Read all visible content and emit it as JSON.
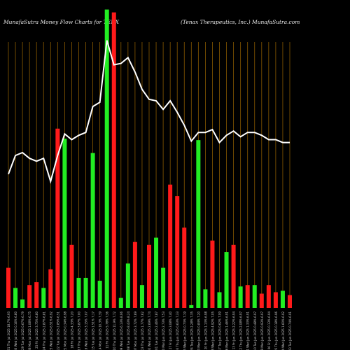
{
  "header": {
    "title_left": "MunafaSutra  Money  Flow  Charts for  TENX",
    "title_right": "(Tenax Therapeutics,  Inc.) MunafaSutra.com"
  },
  "colors": {
    "background": "#000000",
    "gridline": "#8a5a00",
    "up_bar": "#22ee22",
    "down_bar": "#ff1a1a",
    "price_line": "#ffffff",
    "tick_label": "#cccccc"
  },
  "chart_data": {
    "type": "bar",
    "grid": "vertical",
    "categories": [
      "31 Thu Jul 2025 18.7% 6.93",
      "30 Wed Jul 2025 0.16% 6.80",
      "29 Tue Jul 2025 0.67% 6.79",
      "28 Mon Jul 2025 1.08% 6.75",
      "25 Fri Jul 2025 3.75% 6.80",
      "24 Thu Jul 2025 2.87% 6.81",
      "23 Wed Jul 2025 6.51% 6.92",
      "22 Tue Jul 2025 2.85% 6.51",
      "21 Mon Jul 2025 0.34% 6.98",
      "18 Fri Jul 2025 4.33% 7.20",
      "17 Thu Jul 2025 3.87% 7.00",
      "16 Wed Jul 2025 3.15% 7.07",
      "15 Tue Jul 2025 1.51% 7.17",
      "14 Mon Jul 2025 10.3% 7.39",
      "11 Fri Jul 2025 5.78% 7.36",
      "10 Thu Jul 2025 11.9% 7.72",
      "09 Wed Jul 2025 6.13% 8.06",
      "08 Tue Jul 2025 8.43% 8.24",
      "07 Mon Jul 2025 3.72% 7.69",
      "03 Thu Jul 2025 1.77% 7.62",
      "02 Wed Jul 2025 2.69% 7.74",
      "01 Tue Jul 2025 2.46% 7.87",
      "30 Mon Jun 2025 2.73% 7.53",
      "27 Fri Jun 2025 3.08% 7.40",
      "26 Thu Jun 2025 0.63% 7.33",
      "25 Wed Jun 2025 0.73% 7.19",
      "24 Tue Jun 2025 2.28% 7.35",
      "23 Mon Jun 2025 0.84% 7.20",
      "20 Fri Jun 2025 1.13% 6.98",
      "18 Wed Jun 2025 4.92% 7.05",
      "17 Tue Jun 2025 0.62% 7.09",
      "16 Mon Jun 2025 1.46% 6.91",
      "13 Fri Jun 2025 2.22% 6.94",
      "12 Thu Jun 2025 2.08% 6.97",
      "11 Wed Jun 2025 1.33% 6.91",
      "10 Tue Jun 2025 0.48% 6.97",
      "09 Mon Jun 2025 0.93% 6.97",
      "06 Fri Jun 2025 0.13% 6.94",
      "05 Thu Jun 2025 0.18% 6.96",
      "04 Wed Jun 2025 1.60% 6.92",
      "03 Tue Jun 2025 0.74% 6.91"
    ],
    "series": [
      {
        "values": [
          28,
          14,
          6,
          16,
          18,
          14,
          27,
          125,
          118,
          44,
          21,
          21,
          108,
          19,
          208,
          206,
          7,
          31,
          46,
          16,
          44,
          49,
          28,
          86,
          78,
          56,
          2,
          117,
          13,
          47,
          11,
          39,
          44,
          15,
          16,
          16,
          10,
          16,
          11,
          12,
          9
        ],
        "directions": [
          "down",
          "up",
          "up",
          "down",
          "down",
          "up",
          "down",
          "down",
          "up",
          "down",
          "up",
          "up",
          "up",
          "up",
          "up",
          "down",
          "up",
          "up",
          "down",
          "up",
          "down",
          "up",
          "up",
          "down",
          "down",
          "down",
          "up",
          "up",
          "up",
          "down",
          "up",
          "up",
          "down",
          "up",
          "down",
          "up",
          "down",
          "down",
          "down",
          "up",
          "down"
        ]
      }
    ],
    "price_line": [
      6.93,
      7.06,
      7.08,
      7.04,
      7.02,
      7.04,
      6.88,
      7.06,
      7.21,
      7.17,
      7.2,
      7.22,
      7.4,
      7.43,
      7.86,
      7.69,
      7.7,
      7.74,
      7.64,
      7.52,
      7.45,
      7.44,
      7.38,
      7.44,
      7.36,
      7.27,
      7.16,
      7.22,
      7.22,
      7.24,
      7.15,
      7.2,
      7.23,
      7.19,
      7.22,
      7.22,
      7.2,
      7.17,
      7.17,
      7.15,
      7.15
    ],
    "price_range": [
      6.0,
      7.8
    ],
    "ylim": [
      0,
      200
    ]
  }
}
